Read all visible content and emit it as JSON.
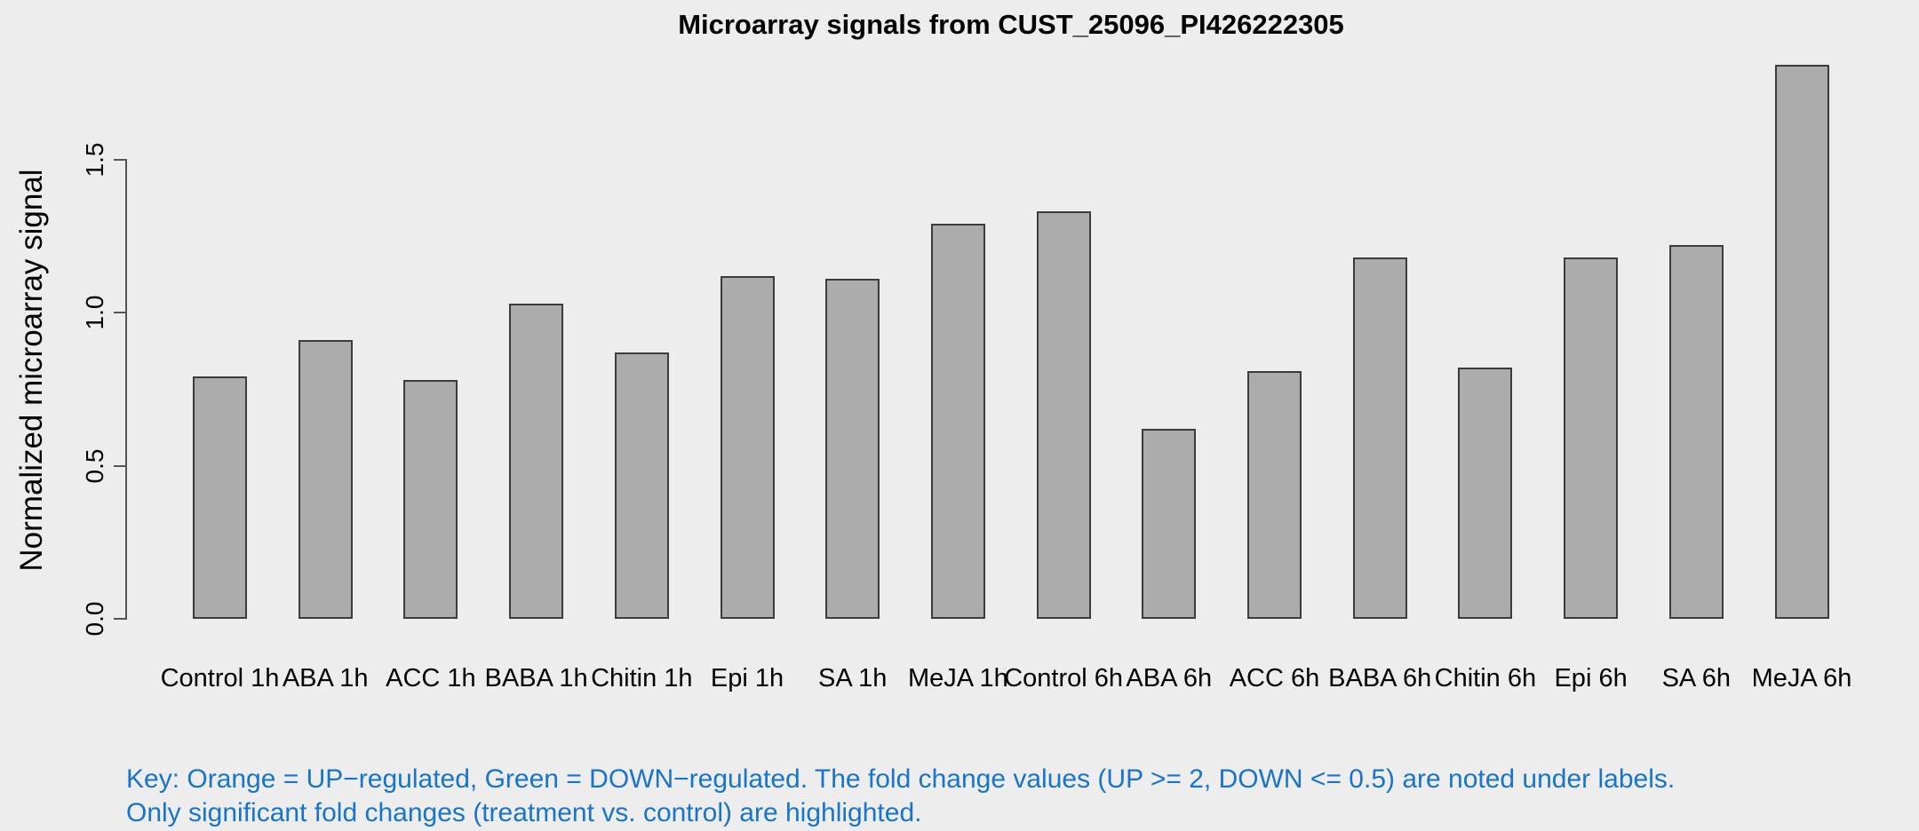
{
  "title": "Microarray signals from CUST_25096_PI426222305",
  "key": {
    "line1": "Key: Orange = UP−regulated, Green = DOWN−regulated. The fold change values (UP >= 2, DOWN <= 0.5) are noted under labels.",
    "line2": "Only significant fold changes (treatment vs. control) are highlighted.",
    "text_color": "#1874cd"
  },
  "colors": {
    "background": "#ededed",
    "bar_fill": "#acacac",
    "bar_border": "#3c3c3c",
    "axis": "#555555"
  },
  "chart_data": {
    "type": "bar",
    "title": "Microarray signals from CUST_25096_PI426222305",
    "xlabel": "",
    "ylabel": "Normalized microarray signal",
    "categories": [
      "Control 1h",
      "ABA 1h",
      "ACC 1h",
      "BABA 1h",
      "Chitin 1h",
      "Epi 1h",
      "SA 1h",
      "MeJA 1h",
      "Control 6h",
      "ABA 6h",
      "ACC 6h",
      "BABA 6h",
      "Chitin 6h",
      "Epi 6h",
      "SA 6h",
      "MeJA 6h"
    ],
    "values": [
      0.79,
      0.91,
      0.78,
      1.03,
      0.87,
      1.12,
      1.11,
      1.29,
      1.33,
      0.62,
      0.81,
      1.18,
      0.82,
      1.18,
      1.22,
      1.81
    ],
    "yticks": [
      0.0,
      0.5,
      1.0,
      1.5
    ],
    "ytick_labels": [
      "0.0",
      "0.5",
      "1.0",
      "1.5"
    ],
    "ylim": [
      0,
      1.85
    ],
    "grid": false,
    "legend": "none",
    "bar_color": "#acacac",
    "bar_border_color": "#3c3c3c"
  }
}
